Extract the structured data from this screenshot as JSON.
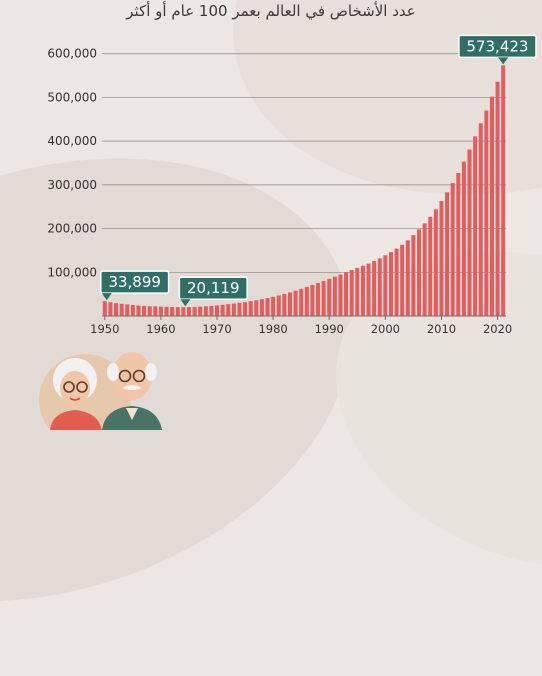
{
  "chart_data": {
    "type": "bar",
    "title": "عدد الأشخاص في العالم بعمر 100 عام أو أكثر",
    "xlabel": "",
    "ylabel": "",
    "ylim": [
      0,
      620000
    ],
    "grid": true,
    "bar_color": "#e25d5d",
    "callout_color": "#2f6f66",
    "y_ticks": [
      100000,
      200000,
      300000,
      400000,
      500000,
      600000
    ],
    "y_tick_labels": [
      "100,000",
      "200,000",
      "300,000",
      "400,000",
      "500,000",
      "600,000"
    ],
    "x_ticks": [
      1950,
      1960,
      1970,
      1980,
      1990,
      2000,
      2010,
      2020
    ],
    "x_tick_labels": [
      "1950",
      "1960",
      "1970",
      "1980",
      "1990",
      "2000",
      "2010",
      "2020"
    ],
    "years": [
      1950,
      1951,
      1952,
      1953,
      1954,
      1955,
      1956,
      1957,
      1958,
      1959,
      1960,
      1961,
      1962,
      1963,
      1964,
      1965,
      1966,
      1967,
      1968,
      1969,
      1970,
      1971,
      1972,
      1973,
      1974,
      1975,
      1976,
      1977,
      1978,
      1979,
      1980,
      1981,
      1982,
      1983,
      1984,
      1985,
      1986,
      1987,
      1988,
      1989,
      1990,
      1991,
      1992,
      1993,
      1994,
      1995,
      1996,
      1997,
      1998,
      1999,
      2000,
      2001,
      2002,
      2003,
      2004,
      2005,
      2006,
      2007,
      2008,
      2009,
      2010,
      2011,
      2012,
      2013,
      2014,
      2015,
      2016,
      2017,
      2018,
      2019,
      2020,
      2021
    ],
    "values": [
      33899,
      31500,
      29500,
      28000,
      26500,
      25000,
      24000,
      23200,
      22500,
      22000,
      21500,
      21000,
      20600,
      20300,
      20119,
      20300,
      20800,
      21500,
      22300,
      23200,
      24200,
      25500,
      27000,
      28500,
      30000,
      31800,
      33800,
      36000,
      38500,
      41000,
      44000,
      47000,
      50500,
      54000,
      58000,
      62000,
      66500,
      71000,
      75500,
      80000,
      85000,
      90000,
      95000,
      100000,
      105000,
      110000,
      115000,
      120000,
      126000,
      132000,
      139000,
      146000,
      154000,
      163000,
      173000,
      185000,
      198000,
      212000,
      227000,
      244000,
      263000,
      283000,
      304000,
      327000,
      353000,
      381000,
      411000,
      441000,
      470000,
      502000,
      536000,
      573423
    ],
    "callouts": [
      {
        "year": 1950,
        "text": "33,899"
      },
      {
        "year": 1964,
        "text": "20,119"
      },
      {
        "year": 2021,
        "text": "573,423"
      }
    ]
  }
}
